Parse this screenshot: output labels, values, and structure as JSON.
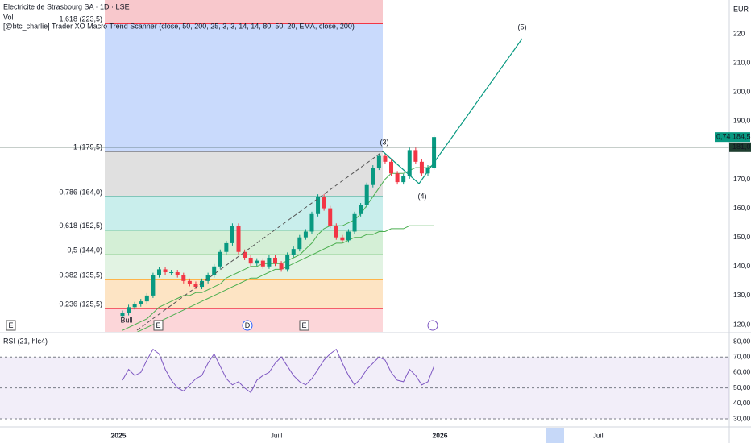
{
  "header": {
    "title": "Electricite de Strasbourg SA · 1D · LSE",
    "vol": "Vol",
    "indicator": "[@btc_charlie] Trader XO Macro Trend Scanner (close, 50, 200, 25, 3, 3, 14, 14, 80, 50, 20, EMA, close, 200)"
  },
  "price_axis": {
    "unit": "EUR",
    "ticks": [
      220,
      {
        "value": 210,
        "label": "210,0"
      },
      {
        "value": 200,
        "label": "200,0"
      },
      {
        "value": 190,
        "label": "190,0"
      },
      {
        "value": 170,
        "label": "170,0"
      },
      {
        "value": 160,
        "label": "160,0"
      },
      {
        "value": 150,
        "label": "150,0"
      },
      {
        "value": 140,
        "label": "140,0"
      },
      {
        "value": 130,
        "label": "130,0"
      },
      {
        "value": 120,
        "label": "120,0"
      }
    ]
  },
  "last_price": {
    "change": "0,74",
    "price": {
      "value": 184.5,
      "label": "184,5"
    }
  },
  "prev_close": {
    "value": 181,
    "label": "181,0"
  },
  "fib": [
    {
      "label": "1,618 (223,5)",
      "value": 223.5,
      "color": "#f23645"
    },
    {
      "label": "1 (179,5)",
      "value": 179.5,
      "color": "#787b86"
    },
    {
      "label": "0,786 (164,0)",
      "value": 164,
      "color": "#22ab94"
    },
    {
      "label": "0,618 (152,5)",
      "value": 152.5,
      "color": "#089981"
    },
    {
      "label": "0,5 (144,0)",
      "value": 144,
      "color": "#4caf50"
    },
    {
      "label": "0,382 (135,5)",
      "value": 135.5,
      "color": "#ff9800"
    },
    {
      "label": "0,236 (125,5)",
      "value": 125.5,
      "color": "#f23645"
    }
  ],
  "waves": [
    "(3)",
    "(4)",
    "(5)"
  ],
  "candles": {
    "close": [
      124,
      126,
      127,
      128,
      130,
      137,
      139,
      138,
      138,
      137,
      135,
      134,
      133,
      135,
      137,
      140,
      145,
      148,
      154,
      145,
      143,
      141,
      142,
      140,
      143,
      141,
      139,
      144,
      146,
      150,
      152,
      158,
      164,
      160,
      154,
      150,
      149,
      152,
      158,
      161,
      168,
      174,
      178,
      176,
      172,
      169,
      171,
      180,
      176,
      172,
      174,
      184.5
    ],
    "ema_fast": [
      118,
      119,
      120,
      121,
      122,
      124,
      126,
      127,
      128,
      129,
      130,
      130,
      131,
      131,
      132,
      133,
      134,
      136,
      137,
      138,
      139,
      140,
      140,
      141,
      141,
      141,
      141,
      142,
      143,
      144,
      146,
      148,
      151,
      153,
      154,
      154,
      154,
      155,
      156,
      158,
      161,
      164,
      167,
      170,
      172,
      172,
      172,
      173,
      174,
      174,
      174,
      175
    ],
    "ema_slow": [
      116,
      117,
      117,
      118,
      119,
      120,
      121,
      122,
      123,
      124,
      125,
      126,
      127,
      128,
      129,
      130,
      131,
      132,
      133,
      134,
      135,
      136,
      136,
      137,
      138,
      139,
      139,
      140,
      141,
      142,
      143,
      144,
      145,
      146,
      147,
      148,
      148,
      149,
      150,
      150,
      151,
      151,
      152,
      152,
      153,
      153,
      153,
      154,
      154,
      154,
      154,
      154
    ]
  },
  "rsi": {
    "label": "RSI (21, hlc4)",
    "values": [
      55,
      62,
      58,
      60,
      68,
      75,
      72,
      62,
      55,
      50,
      48,
      52,
      56,
      58,
      66,
      72,
      64,
      56,
      52,
      54,
      50,
      47,
      55,
      58,
      60,
      66,
      70,
      64,
      58,
      54,
      52,
      56,
      62,
      68,
      72,
      75,
      66,
      58,
      52,
      56,
      62,
      66,
      70,
      68,
      60,
      55,
      54,
      62,
      58,
      52,
      54,
      64
    ],
    "ticks": [
      {
        "value": 80,
        "label": "80,00"
      },
      {
        "value": 70,
        "label": "70,00"
      },
      {
        "value": 60,
        "label": "60,00"
      },
      {
        "value": 50,
        "label": "50,00"
      },
      {
        "value": 40,
        "label": "40,00"
      },
      {
        "value": 30,
        "label": "30,00"
      }
    ],
    "bands": [
      70,
      50,
      30
    ]
  },
  "time_axis": [
    "2025",
    "Juill",
    "2026",
    "Juill"
  ],
  "markers": {
    "bull": "Bull",
    "earnings": "E",
    "dividend": "D"
  }
}
